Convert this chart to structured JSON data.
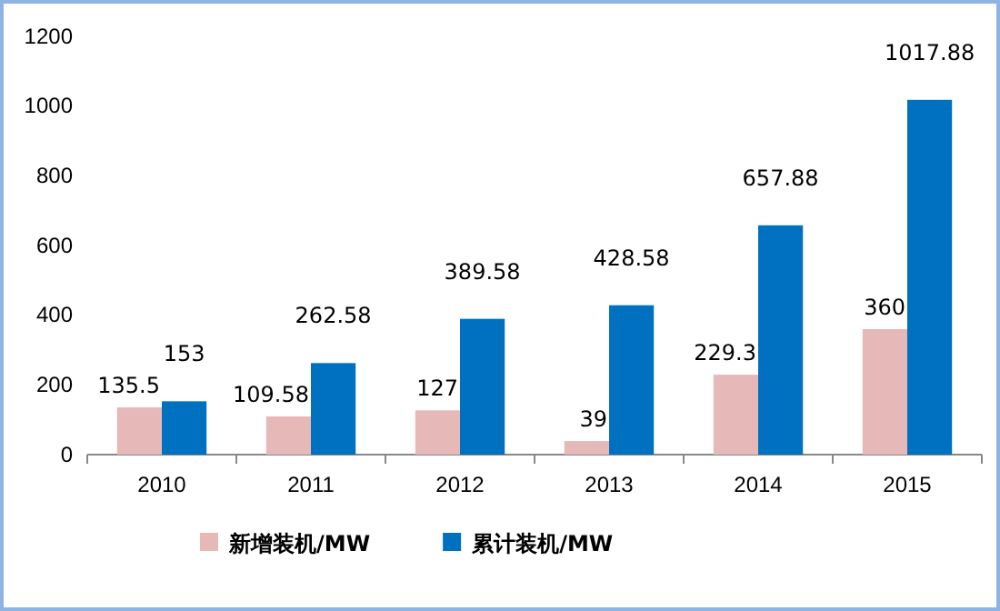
{
  "chart_data": {
    "type": "bar",
    "categories": [
      "2010",
      "2011",
      "2012",
      "2013",
      "2014",
      "2015"
    ],
    "series": [
      {
        "name": "新增装机/MW",
        "color": "#e6b9b8",
        "values": [
          135.5,
          109.58,
          127,
          39,
          229.3,
          360
        ]
      },
      {
        "name": "累计装机/MW",
        "color": "#0070c0",
        "values": [
          153,
          262.58,
          389.58,
          428.58,
          657.88,
          1017.88
        ]
      }
    ],
    "ylim": [
      0,
      1200
    ],
    "yticks": [
      0,
      200,
      400,
      600,
      800,
      1000,
      1200
    ],
    "grid": false,
    "legend": "bottom",
    "data_labels": true
  }
}
